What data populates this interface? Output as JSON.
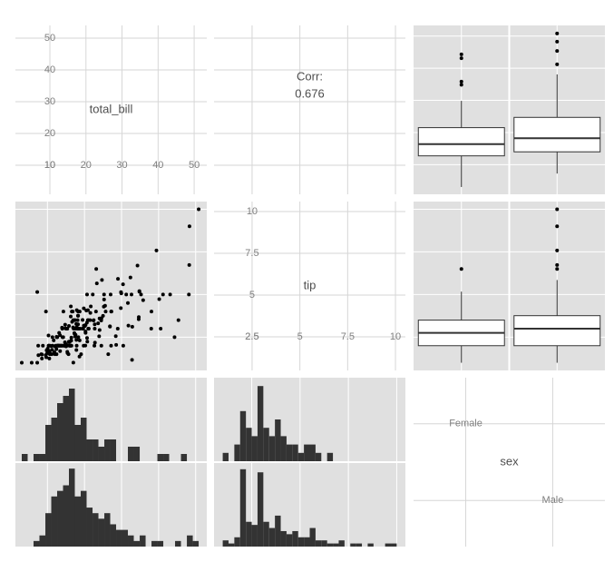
{
  "chart_data": [
    {
      "type": "label",
      "title": "total_bill",
      "xlim": [
        0.44,
        53.5
      ],
      "ylim": [
        0.86,
        54
      ],
      "xticks": [
        10,
        20,
        30,
        40,
        50
      ],
      "yticks": [
        10,
        20,
        30,
        40,
        50
      ]
    },
    {
      "type": "corr",
      "title": "Corr:",
      "value": 0.676,
      "xlim": [
        0.51,
        10.52
      ],
      "ylim": [
        0.86,
        54
      ],
      "xticks": [
        2.5,
        5,
        7.5,
        10
      ],
      "yticks": [
        10,
        20,
        30,
        40,
        50
      ]
    },
    {
      "type": "box",
      "ylim": [
        0.8,
        53.3
      ],
      "yticks": [
        10,
        20,
        30,
        40,
        50
      ],
      "boxes": [
        {
          "whisker_low": 3.07,
          "q1": 12.75,
          "median": 16.4,
          "q3": 21.52,
          "whisker_high": 29.85,
          "outliers": [
            34.83,
            35.83,
            43.11,
            44.3
          ]
        },
        {
          "whisker_low": 7.25,
          "q1": 14,
          "median": 18.24,
          "q3": 24.71,
          "whisker_high": 38.07,
          "outliers": [
            41.19,
            45.35,
            48.27,
            50.81
          ]
        }
      ]
    },
    {
      "type": "scatter",
      "xlim": [
        1.36,
        53
      ],
      "ylim": [
        0.55,
        10.45
      ],
      "xticks": [
        10,
        20,
        30,
        40,
        50
      ],
      "yticks": [
        2.5,
        5,
        7.5,
        10
      ],
      "color": "#000000",
      "x": [
        16.99,
        10.34,
        21.01,
        23.68,
        24.59,
        25.29,
        8.77,
        26.88,
        15.04,
        14.78,
        10.27,
        35.26,
        15.42,
        18.43,
        14.83,
        21.58,
        10.33,
        16.29,
        16.97,
        20.65,
        17.92,
        20.29,
        15.77,
        39.42,
        19.82,
        17.81,
        13.37,
        12.69,
        21.7,
        19.65,
        9.55,
        18.35,
        15.06,
        20.69,
        17.78,
        24.06,
        16.31,
        16.93,
        18.69,
        31.27,
        16.04,
        17.46,
        13.94,
        9.68,
        30.4,
        18.29,
        22.23,
        32.4,
        28.55,
        18.04,
        12.54,
        10.29,
        34.81,
        9.94,
        25.56,
        19.49,
        38.01,
        26.41,
        11.24,
        48.27,
        20.29,
        13.81,
        11.02,
        18.29,
        17.59,
        20.08,
        16.45,
        3.07,
        20.23,
        15.01,
        12.02,
        17.07,
        26.86,
        25.28,
        14.73,
        10.51,
        17.92,
        27.2,
        22.76,
        17.29,
        19.44,
        16.66,
        10.07,
        32.68,
        15.98,
        34.83,
        13.03,
        18.28,
        24.71,
        21.16,
        28.97,
        22.49,
        5.75,
        16.32,
        22.75,
        40.17,
        27.28,
        12.03,
        21.01,
        12.46,
        11.35,
        15.38,
        44.3,
        22.42,
        20.92,
        15.36,
        20.49,
        25.21,
        18.24,
        14.31,
        14,
        7.25,
        38.07,
        23.95,
        25.71,
        17.31,
        29.93,
        10.65,
        12.43,
        24.08,
        11.69,
        13.42,
        14.26,
        15.95,
        12.48,
        29.8,
        8.52,
        14.52,
        11.38,
        22.82,
        19.08,
        20.27,
        11.17,
        12.26,
        18.26,
        8.51,
        10.33,
        14.15,
        16,
        13.16,
        17.47,
        34.3,
        41.19,
        27.05,
        16.43,
        8.35,
        18.64,
        11.87,
        9.78,
        7.51,
        14.07,
        13.13,
        17.26,
        24.55,
        19.77,
        29.85,
        48.17,
        25,
        13.39,
        16.49,
        21.5,
        12.66,
        16.21,
        13.81,
        17.51,
        24.52,
        20.76,
        31.71,
        10.59,
        10.63,
        50.81,
        15.81,
        7.25,
        31.85,
        16.82,
        32.9,
        17.89,
        14.48,
        9.6,
        34.63,
        34.65,
        23.33,
        45.35,
        23.17,
        40.55,
        20.69,
        20.9,
        30.46,
        18.15,
        23.1,
        15.69,
        19.81,
        28.44,
        15.48,
        16.58,
        7.56,
        10.34,
        43.11,
        13,
        13.51,
        18.71,
        12.74,
        32.83,
        35.83,
        29.03,
        27.18,
        22.67,
        17.82,
        18.78,
        48.33
      ],
      "values": [
        1.01,
        1.66,
        3.5,
        3.31,
        3.61,
        4.71,
        2,
        3.12,
        1.96,
        3.23,
        1.71,
        5,
        1.57,
        3,
        3.02,
        3.92,
        1.67,
        3.71,
        3.5,
        3.35,
        4.08,
        2.75,
        2.23,
        7.58,
        3.18,
        2.34,
        2,
        2,
        4.3,
        3,
        1.45,
        2.5,
        3,
        2.45,
        3.27,
        3.6,
        2,
        3.07,
        2.31,
        5,
        2.24,
        2.54,
        3.06,
        1.32,
        5.6,
        3,
        5,
        6,
        2.05,
        3,
        2.5,
        2.6,
        5.2,
        1.56,
        4.34,
        3.51,
        3,
        1.5,
        1.76,
        6.73,
        3.21,
        2,
        1.98,
        3.76,
        2.64,
        3.15,
        2.47,
        1,
        2.01,
        2.09,
        1.97,
        3,
        3.14,
        5,
        2.2,
        1.25,
        3.08,
        4,
        3,
        2.71,
        3,
        3.4,
        1.83,
        5,
        2.03,
        5.17,
        2,
        4,
        5.85,
        3,
        3,
        3.5,
        1,
        4.3,
        3.25,
        4.73,
        4,
        1.5,
        3,
        1.5,
        2.5,
        3,
        2.5,
        3.48,
        4.08,
        1.64,
        4.06,
        4.29,
        3.76,
        4,
        3,
        1,
        4,
        2.55,
        4,
        3.5,
        5.07,
        1.5,
        1.8,
        2.92,
        2.31,
        1.68,
        2.5,
        2,
        2.52,
        4.2,
        1.48,
        2,
        2,
        2.18,
        1.5,
        2.83,
        1.5,
        2,
        3.25,
        1.25,
        2,
        2,
        2,
        2.75,
        3.5,
        6.7,
        5,
        5,
        2.3,
        1.5,
        1.36,
        1.63,
        1.73,
        2,
        2.5,
        2,
        2.74,
        2,
        2,
        5.14,
        5,
        3.75,
        2.61,
        2,
        3.5,
        2.5,
        2,
        2,
        3,
        3.48,
        2.24,
        4.5,
        1.61,
        2,
        10,
        3.16,
        5.15,
        3.18,
        4,
        3.11,
        2,
        2,
        4,
        3.55,
        3.68,
        5.65,
        3.5,
        6.5,
        3,
        5,
        3.5,
        2,
        3.5,
        4,
        1.5,
        4.19,
        2.56,
        2.02,
        4,
        1.44,
        2,
        5,
        2,
        2,
        4,
        2.01,
        1.17,
        4.67,
        5.92,
        2,
        2,
        1.75,
        3,
        9
      ]
    },
    {
      "type": "label",
      "title": "tip",
      "xlim": [
        0.51,
        10.52
      ],
      "ylim": [
        0.49,
        10.6
      ],
      "xticks": [
        2.5,
        5,
        7.5,
        10
      ],
      "yticks": [
        2.5,
        5,
        7.5,
        10
      ]
    },
    {
      "type": "box",
      "ylim": [
        0.55,
        10.45
      ],
      "yticks": [
        2.5,
        5,
        7.5,
        10
      ],
      "boxes": [
        {
          "whisker_low": 1,
          "q1": 2,
          "median": 2.75,
          "q3": 3.5,
          "whisker_high": 5.17,
          "outliers": [
            6.5
          ]
        },
        {
          "whisker_low": 1,
          "q1": 2,
          "median": 3,
          "q3": 3.76,
          "whisker_high": 5.85,
          "outliers": [
            6.5,
            6.73,
            7.58,
            9,
            10
          ]
        }
      ]
    },
    {
      "type": "histogram",
      "xlim": [
        1.36,
        53
      ],
      "xticks": [
        10,
        20,
        30,
        40,
        50
      ],
      "color": "#333333",
      "bins": [
        3.07,
        4.66,
        6.25,
        7.84,
        9.44,
        11.03,
        12.62,
        14.21,
        15.8,
        17.39,
        18.98,
        20.57,
        22.17,
        23.76,
        25.35,
        26.94,
        28.53,
        30.12,
        31.71,
        33.3,
        34.9,
        36.49,
        38.08,
        39.67,
        41.26,
        42.85,
        44.44,
        46.03,
        47.63,
        49.22,
        50.81
      ],
      "facets": [
        {
          "ylim": [
            0,
            11.5
          ],
          "values": [
            1,
            0,
            1,
            1,
            5,
            6,
            8,
            9,
            10,
            5,
            6,
            3,
            3,
            2,
            3,
            3,
            0,
            0,
            2,
            2,
            0,
            0,
            0,
            1,
            1,
            0,
            0,
            1,
            0,
            0
          ]
        },
        {
          "ylim": [
            0,
            15
          ],
          "values": [
            0,
            0,
            1,
            2,
            6,
            9,
            10,
            11,
            14,
            9,
            10,
            7,
            6,
            5,
            6,
            4,
            3,
            3,
            2,
            1,
            2,
            0,
            1,
            1,
            0,
            0,
            1,
            0,
            2,
            1
          ]
        }
      ]
    },
    {
      "type": "histogram",
      "xlim": [
        0.55,
        10.45
      ],
      "xticks": [
        2.5,
        5,
        7.5,
        10
      ],
      "color": "#333333",
      "bins": [
        1,
        1.3,
        1.6,
        1.9,
        2.2,
        2.5,
        2.8,
        3.1,
        3.4,
        3.7,
        4,
        4.3,
        4.6,
        4.9,
        5.2,
        5.5,
        5.8,
        6.1,
        6.4,
        6.7,
        7,
        7.3,
        7.6,
        7.9,
        8.2,
        8.5,
        8.8,
        9.1,
        9.4,
        9.7,
        10
      ],
      "facets": [
        {
          "ylim": [
            0,
            10
          ],
          "values": [
            1,
            0,
            2,
            6,
            4,
            3,
            9,
            4,
            3,
            5,
            3,
            2,
            2,
            1,
            2,
            2,
            1,
            0,
            1,
            0,
            0,
            0,
            0,
            0,
            0,
            0,
            0,
            0,
            0,
            0
          ]
        },
        {
          "ylim": [
            0,
            27
          ],
          "values": [
            2,
            1,
            3,
            25,
            8,
            7,
            24,
            8,
            6,
            10,
            5,
            4,
            5,
            3,
            3,
            6,
            2,
            2,
            1,
            1,
            2,
            0,
            1,
            1,
            0,
            1,
            0,
            0,
            1,
            1
          ]
        }
      ]
    },
    {
      "type": "label",
      "title": "sex",
      "categories": [
        "Female",
        "Male"
      ]
    }
  ]
}
